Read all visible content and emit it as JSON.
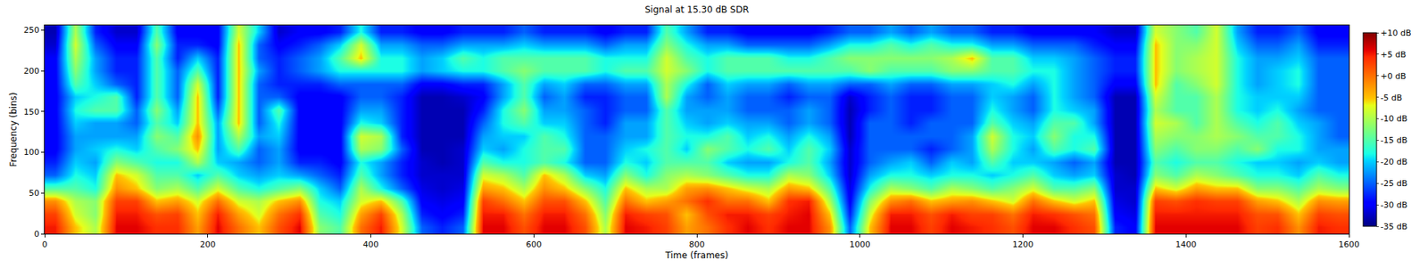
{
  "chart_data": {
    "type": "heatmap",
    "title": "Signal at 15.30 dB SDR",
    "x_label": "Time (frames)",
    "y_label": "Frequency (bins)",
    "xlim": [
      0,
      1600
    ],
    "xticks": [
      0,
      200,
      400,
      600,
      800,
      1000,
      1200,
      1400,
      1600
    ],
    "ylim": [
      0,
      256
    ],
    "yticks": [
      0,
      50,
      100,
      150,
      200,
      250
    ],
    "zlim": [
      -35,
      10
    ],
    "zticks": [
      {
        "value": 10,
        "label": "+10 dB"
      },
      {
        "value": 5,
        "label": "+5 dB"
      },
      {
        "value": 0,
        "label": "+0 dB"
      },
      {
        "value": -5,
        "label": "-5 dB"
      },
      {
        "value": -10,
        "label": "-10 dB"
      },
      {
        "value": -15,
        "label": "-15 dB"
      },
      {
        "value": -20,
        "label": "-20 dB"
      },
      {
        "value": -25,
        "label": "-25 dB"
      },
      {
        "value": -30,
        "label": "-30 dB"
      },
      {
        "value": -35,
        "label": "-35 dB"
      }
    ],
    "x": [
      12.5,
      37.5,
      62.5,
      87.5,
      112.5,
      137.5,
      162.5,
      187.5,
      212.5,
      237.5,
      262.5,
      287.5,
      312.5,
      337.5,
      362.5,
      387.5,
      412.5,
      437.5,
      462.5,
      487.5,
      512.5,
      537.5,
      562.5,
      587.5,
      612.5,
      637.5,
      662.5,
      687.5,
      712.5,
      737.5,
      762.5,
      787.5,
      812.5,
      837.5,
      862.5,
      887.5,
      912.5,
      937.5,
      962.5,
      987.5,
      1012.5,
      1037.5,
      1062.5,
      1087.5,
      1112.5,
      1137.5,
      1162.5,
      1187.5,
      1212.5,
      1237.5,
      1262.5,
      1287.5,
      1312.5,
      1337.5,
      1362.5,
      1387.5,
      1412.5,
      1437.5,
      1462.5,
      1487.5,
      1512.5,
      1537.5,
      1562.5,
      1587.5
    ],
    "y": [
      8,
      24,
      40,
      56,
      72,
      88,
      104,
      120,
      136,
      152,
      168,
      184,
      200,
      216,
      232,
      248
    ],
    "z": [
      [
        5,
        -5,
        -10,
        6,
        6,
        4,
        4,
        -3,
        6,
        0,
        -5,
        2,
        6,
        -12,
        -15,
        0,
        5,
        -8,
        -25,
        -28,
        -25,
        6,
        6,
        2,
        6,
        6,
        2,
        -10,
        6,
        5,
        3,
        -3,
        0,
        4,
        6,
        4,
        6,
        6,
        -2,
        -25,
        -5,
        6,
        6,
        3,
        6,
        5,
        4,
        2,
        6,
        6,
        4,
        2,
        -28,
        -30,
        6,
        6,
        6,
        6,
        6,
        3,
        4,
        -2,
        5,
        4
      ],
      [
        3,
        -8,
        -12,
        5,
        5,
        2,
        3,
        -5,
        5,
        -3,
        -8,
        0,
        4,
        -15,
        -18,
        -3,
        3,
        -10,
        -28,
        -30,
        -28,
        5,
        5,
        0,
        5,
        5,
        0,
        -12,
        5,
        3,
        2,
        -5,
        2,
        5,
        5,
        3,
        5,
        6,
        -5,
        -28,
        -8,
        5,
        5,
        2,
        5,
        3,
        3,
        0,
        5,
        4,
        2,
        0,
        -30,
        -31,
        5,
        5,
        5,
        5,
        5,
        2,
        2,
        -5,
        3,
        2
      ],
      [
        -2,
        -10,
        -12,
        3,
        3,
        -5,
        -3,
        -8,
        0,
        -8,
        -10,
        -5,
        -2,
        -18,
        -20,
        -8,
        -5,
        -15,
        -30,
        -31,
        -30,
        3,
        0,
        -5,
        2,
        2,
        -5,
        -15,
        0,
        -5,
        -3,
        0,
        4,
        0,
        0,
        -5,
        4,
        5,
        -10,
        -30,
        -12,
        -2,
        0,
        -5,
        -3,
        -2,
        -5,
        -8,
        0,
        -5,
        -8,
        -5,
        -31,
        -32,
        3,
        2,
        4,
        3,
        3,
        -3,
        -5,
        -10,
        -2,
        -3
      ],
      [
        -15,
        -15,
        -18,
        -2,
        -5,
        -12,
        -10,
        -15,
        -8,
        -15,
        -18,
        -15,
        -12,
        -20,
        -25,
        -10,
        -18,
        -25,
        -31,
        -32,
        -31,
        -3,
        -5,
        -10,
        -2,
        -5,
        -12,
        -18,
        -5,
        -10,
        -10,
        -3,
        -2,
        -5,
        -8,
        -10,
        -3,
        -5,
        -15,
        -31,
        -18,
        -10,
        -12,
        -15,
        -10,
        -12,
        -15,
        -12,
        -8,
        -15,
        -15,
        -12,
        -32,
        -32,
        -5,
        -8,
        -3,
        -5,
        -5,
        -12,
        -12,
        -15,
        -10,
        -12
      ],
      [
        -25,
        -18,
        -20,
        -5,
        -8,
        -15,
        -15,
        -20,
        -15,
        -20,
        -22,
        -20,
        -22,
        -25,
        -28,
        -15,
        -22,
        -28,
        -32,
        -32,
        -32,
        -8,
        -10,
        -15,
        -5,
        -10,
        -20,
        -22,
        -12,
        -18,
        -12,
        -10,
        -12,
        -15,
        -18,
        -18,
        -10,
        -12,
        -20,
        -32,
        -22,
        -18,
        -18,
        -20,
        -18,
        -18,
        -20,
        -18,
        -15,
        -20,
        -22,
        -20,
        -32,
        -33,
        -12,
        -15,
        -10,
        -12,
        -15,
        -18,
        -18,
        -20,
        -15,
        -18
      ],
      [
        -28,
        -20,
        -22,
        -12,
        -15,
        -18,
        -18,
        -10,
        -20,
        -22,
        -25,
        -22,
        -28,
        -28,
        -30,
        -18,
        -22,
        -28,
        -32,
        -33,
        -32,
        -15,
        -18,
        -18,
        -15,
        -18,
        -25,
        -25,
        -18,
        -20,
        -15,
        -15,
        -15,
        -20,
        -22,
        -22,
        -18,
        -15,
        -22,
        -32,
        -25,
        -22,
        -20,
        -25,
        -20,
        -22,
        -15,
        -20,
        -20,
        -22,
        -25,
        -22,
        -33,
        -33,
        -15,
        -18,
        -15,
        -15,
        -18,
        -20,
        -20,
        -22,
        -20,
        -22
      ],
      [
        -30,
        -22,
        -20,
        -18,
        -20,
        -15,
        -12,
        -5,
        -22,
        -15,
        -25,
        -22,
        -30,
        -30,
        -30,
        -10,
        -12,
        -25,
        -33,
        -33,
        -32,
        -20,
        -22,
        -18,
        -15,
        -15,
        -25,
        -25,
        -20,
        -18,
        -15,
        -20,
        -12,
        -15,
        -18,
        -15,
        -20,
        -15,
        -20,
        -32,
        -25,
        -25,
        -25,
        -28,
        -25,
        -22,
        -10,
        -18,
        -22,
        -15,
        -18,
        -15,
        -33,
        -33,
        -12,
        -15,
        -12,
        -12,
        -15,
        -12,
        -18,
        -18,
        -22,
        -22
      ],
      [
        -30,
        -22,
        -22,
        -22,
        -22,
        -12,
        -15,
        -2,
        -22,
        -10,
        -22,
        -20,
        -30,
        -30,
        -30,
        -8,
        -10,
        -28,
        -33,
        -33,
        -33,
        -22,
        -20,
        -20,
        -15,
        -18,
        -25,
        -25,
        -22,
        -22,
        -15,
        -18,
        -18,
        -15,
        -20,
        -18,
        -22,
        -18,
        -22,
        -33,
        -25,
        -25,
        -25,
        -25,
        -25,
        -22,
        -8,
        -18,
        -20,
        -12,
        -18,
        -18,
        -33,
        -33,
        -10,
        -12,
        -12,
        -10,
        -12,
        -15,
        -15,
        -18,
        -22,
        -25
      ],
      [
        -30,
        -20,
        -22,
        -22,
        -25,
        -15,
        -20,
        -5,
        -22,
        -5,
        -25,
        -18,
        -30,
        -30,
        -30,
        -18,
        -20,
        -28,
        -33,
        -33,
        -33,
        -25,
        -18,
        -15,
        -20,
        -20,
        -25,
        -28,
        -22,
        -22,
        -15,
        -20,
        -22,
        -20,
        -22,
        -22,
        -25,
        -22,
        -25,
        -33,
        -25,
        -25,
        -28,
        -25,
        -25,
        -25,
        -15,
        -20,
        -22,
        -15,
        -15,
        -22,
        -33,
        -33,
        -8,
        -10,
        -15,
        -10,
        -15,
        -18,
        -15,
        -20,
        -22,
        -25
      ],
      [
        -30,
        -18,
        -15,
        -15,
        -25,
        -12,
        -22,
        -5,
        -25,
        -5,
        -25,
        -15,
        -30,
        -30,
        -30,
        -22,
        -22,
        -28,
        -33,
        -33,
        -33,
        -28,
        -18,
        -12,
        -22,
        -22,
        -25,
        -28,
        -25,
        -25,
        -15,
        -22,
        -22,
        -22,
        -25,
        -25,
        -25,
        -22,
        -25,
        -33,
        -28,
        -25,
        -28,
        -28,
        -25,
        -25,
        -18,
        -22,
        -25,
        -18,
        -20,
        -22,
        -33,
        -33,
        -10,
        -15,
        -15,
        -10,
        -18,
        -20,
        -18,
        -22,
        -25,
        -25
      ],
      [
        -30,
        -20,
        -18,
        -15,
        -28,
        -15,
        -25,
        -5,
        -28,
        -5,
        -25,
        -25,
        -30,
        -30,
        -30,
        -25,
        -25,
        -28,
        -33,
        -33,
        -32,
        -30,
        -22,
        -15,
        -25,
        -22,
        -28,
        -28,
        -25,
        -25,
        -10,
        -22,
        -25,
        -22,
        -25,
        -25,
        -28,
        -25,
        -25,
        -32,
        -28,
        -25,
        -28,
        -28,
        -25,
        -25,
        -20,
        -22,
        -25,
        -18,
        -22,
        -25,
        -33,
        -33,
        -8,
        -15,
        -15,
        -10,
        -18,
        -20,
        -20,
        -20,
        -25,
        -25
      ],
      [
        -30,
        -15,
        -20,
        -25,
        -28,
        -15,
        -25,
        -8,
        -28,
        -5,
        -25,
        -28,
        -28,
        -28,
        -25,
        -25,
        -25,
        -25,
        -30,
        -30,
        -28,
        -28,
        -22,
        -15,
        -22,
        -20,
        -25,
        -25,
        -22,
        -22,
        -10,
        -18,
        -25,
        -20,
        -22,
        -22,
        -25,
        -22,
        -22,
        -25,
        -25,
        -22,
        -25,
        -25,
        -22,
        -22,
        -20,
        -18,
        -22,
        -18,
        -22,
        -25,
        -30,
        -30,
        -5,
        -15,
        -12,
        -8,
        -18,
        -22,
        -20,
        -18,
        -25,
        -25
      ],
      [
        -30,
        -12,
        -22,
        -28,
        -28,
        -15,
        -25,
        -15,
        -28,
        -5,
        -22,
        -28,
        -25,
        -22,
        -18,
        -18,
        -18,
        -18,
        -22,
        -20,
        -18,
        -18,
        -15,
        -12,
        -15,
        -15,
        -15,
        -18,
        -15,
        -15,
        -8,
        -12,
        -18,
        -15,
        -15,
        -15,
        -15,
        -15,
        -15,
        -15,
        -12,
        -15,
        -15,
        -15,
        -12,
        -12,
        -15,
        -15,
        -18,
        -18,
        -22,
        -25,
        -28,
        -28,
        -5,
        -12,
        -10,
        -8,
        -18,
        -22,
        -20,
        -18,
        -25,
        -25
      ],
      [
        -30,
        -10,
        -22,
        -28,
        -28,
        -15,
        -28,
        -20,
        -28,
        -5,
        -25,
        -28,
        -25,
        -22,
        -15,
        -5,
        -18,
        -18,
        -22,
        -20,
        -15,
        -18,
        -15,
        -15,
        -15,
        -15,
        -15,
        -18,
        -18,
        -18,
        -8,
        -15,
        -18,
        -15,
        -15,
        -15,
        -18,
        -18,
        -15,
        -12,
        -12,
        -12,
        -12,
        -12,
        -10,
        -5,
        -15,
        -15,
        -20,
        -20,
        -22,
        -25,
        -28,
        -28,
        -5,
        -12,
        -10,
        -8,
        -18,
        -22,
        -22,
        -20,
        -25,
        -25
      ],
      [
        -32,
        -8,
        -25,
        -30,
        -30,
        -12,
        -28,
        -28,
        -30,
        -5,
        -25,
        -30,
        -28,
        -25,
        -20,
        -8,
        -22,
        -22,
        -25,
        -25,
        -22,
        -22,
        -22,
        -20,
        -22,
        -22,
        -22,
        -25,
        -22,
        -22,
        -12,
        -18,
        -22,
        -22,
        -25,
        -25,
        -25,
        -25,
        -22,
        -18,
        -18,
        -15,
        -18,
        -15,
        -18,
        -18,
        -22,
        -22,
        -25,
        -25,
        -25,
        -28,
        -30,
        -30,
        -5,
        -12,
        -12,
        -8,
        -20,
        -25,
        -25,
        -22,
        -28,
        -28
      ],
      [
        -33,
        -10,
        -28,
        -32,
        -32,
        -15,
        -30,
        -30,
        -30,
        -8,
        -20,
        -32,
        -30,
        -30,
        -28,
        -18,
        -28,
        -28,
        -30,
        -30,
        -28,
        -28,
        -28,
        -25,
        -28,
        -28,
        -28,
        -30,
        -28,
        -28,
        -15,
        -22,
        -28,
        -28,
        -30,
        -30,
        -30,
        -30,
        -28,
        -25,
        -25,
        -22,
        -25,
        -22,
        -25,
        -25,
        -28,
        -28,
        -30,
        -30,
        -30,
        -30,
        -32,
        -32,
        -8,
        -12,
        -15,
        -8,
        -22,
        -28,
        -28,
        -25,
        -30,
        -30
      ]
    ]
  }
}
